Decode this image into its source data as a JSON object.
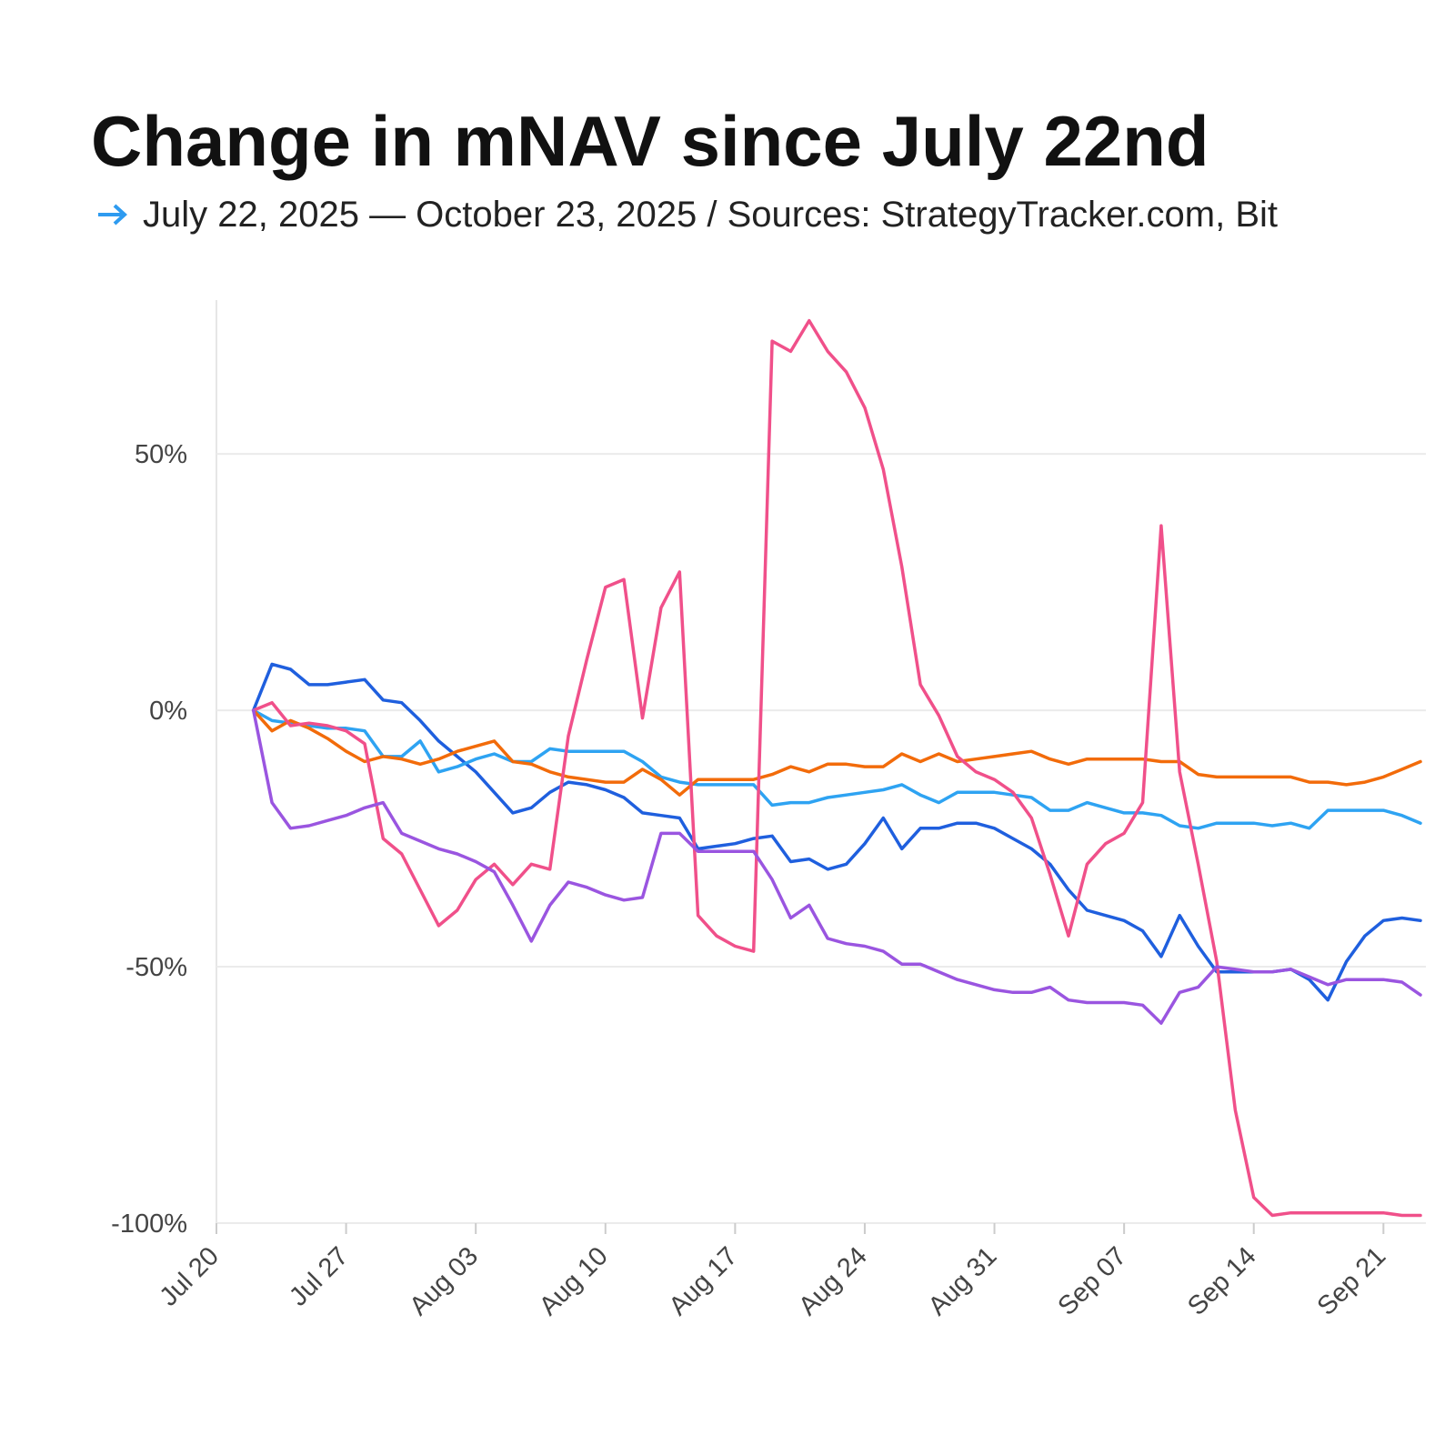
{
  "chart_data": {
    "type": "line",
    "title": "Change in mNAV since July 22nd",
    "subtitle": "July 22, 2025 — October 23, 2025 / Sources: StrategyTracker.com, Bit",
    "categories": [
      "Jul 20",
      null,
      null,
      null,
      null,
      null,
      null,
      "Jul 27",
      null,
      null,
      null,
      null,
      null,
      null,
      "Aug 03",
      null,
      null,
      null,
      null,
      null,
      null,
      "Aug 10",
      null,
      null,
      null,
      null,
      null,
      null,
      "Aug 17",
      null,
      null,
      null,
      null,
      null,
      null,
      "Aug 24",
      null,
      null,
      null,
      null,
      null,
      null,
      "Aug 31",
      null,
      null,
      null,
      null,
      null,
      null,
      "Sep 07",
      null,
      null,
      null,
      null,
      null,
      null,
      "Sep 14",
      null,
      null,
      null,
      null,
      null,
      null,
      "Sep 21",
      null,
      null
    ],
    "ylim": [
      -100,
      80
    ],
    "yticks": [
      {
        "value": -100,
        "label": "-100%"
      },
      {
        "value": -50,
        "label": "-50%"
      },
      {
        "value": 0,
        "label": "0%"
      },
      {
        "value": 50,
        "label": "50%"
      }
    ],
    "grid": true,
    "series": [
      {
        "color": "#1f5fde",
        "values": [
          null,
          null,
          0,
          9,
          8,
          5,
          5,
          5.5,
          6,
          2,
          1.5,
          -2,
          -6,
          -9,
          -12,
          -16,
          -20,
          -19,
          -16,
          -14,
          -14.5,
          -15.5,
          -17,
          -20,
          -20.5,
          -21,
          -27,
          -26.5,
          -26,
          -25,
          -24.5,
          -29.5,
          -29,
          -31,
          -30,
          -26,
          -21,
          -27,
          -23,
          -23,
          -22,
          -22,
          -23,
          -25,
          -27,
          -30,
          -35,
          -39,
          -40,
          -41,
          -43,
          -48,
          -40,
          -46,
          -51,
          -51,
          -51,
          -51,
          -50.5,
          -52.5,
          -56.5,
          -49,
          -44,
          -41,
          -40.5,
          -41
        ]
      },
      {
        "color": "#2ea3f2",
        "values": [
          null,
          null,
          0,
          -2,
          -2.5,
          -3,
          -3.5,
          -3.5,
          -4,
          -9,
          -9,
          -6,
          -12,
          -11,
          -9.5,
          -8.5,
          -10,
          -10,
          -7.5,
          -8,
          -8,
          -8,
          -8,
          -10,
          -13,
          -14,
          -14.5,
          -14.5,
          -14.5,
          -14.5,
          -18.5,
          -18,
          -18,
          -17,
          -16.5,
          -16,
          -15.5,
          -14.5,
          -16.5,
          -18,
          -16,
          -16,
          -16,
          -16.5,
          -17,
          -19.5,
          -19.5,
          -18,
          -19,
          -20,
          -20,
          -20.5,
          -22.5,
          -23,
          -22,
          -22,
          -22,
          -22.5,
          -22,
          -23,
          -19.5,
          -19.5,
          -19.5,
          -19.5,
          -20.5,
          -22
        ]
      },
      {
        "color": "#f26b0a",
        "values": [
          null,
          null,
          0,
          -4,
          -2,
          -3.5,
          -5.5,
          -8,
          -10,
          -9,
          -9.5,
          -10.5,
          -9.5,
          -8,
          -7,
          -6,
          -10,
          -10.5,
          -12,
          -13,
          -13.5,
          -14,
          -14,
          -11.5,
          -13.5,
          -16.5,
          -13.5,
          -13.5,
          -13.5,
          -13.5,
          -12.5,
          -11,
          -12,
          -10.5,
          -10.5,
          -11,
          -11,
          -8.5,
          -10,
          -8.5,
          -10,
          -9.5,
          -9,
          -8.5,
          -8,
          -9.5,
          -10.5,
          -9.5,
          -9.5,
          -9.5,
          -9.5,
          -10,
          -10,
          -12.5,
          -13,
          -13,
          -13,
          -13,
          -13,
          -14,
          -14,
          -14.5,
          -14,
          -13,
          -11.5,
          -10
        ]
      },
      {
        "color": "#f0508a",
        "values": [
          null,
          null,
          0,
          1.5,
          -3,
          -2.5,
          -3,
          -4,
          -6.5,
          -25,
          -28,
          -35,
          -42,
          -39,
          -33,
          -30,
          -34,
          -30,
          -31,
          -5,
          10,
          24,
          25.5,
          -1.5,
          20,
          27,
          -40,
          -44,
          -46,
          -47,
          72,
          70,
          76,
          70,
          66,
          59,
          47,
          28,
          5,
          -1,
          -9,
          -12,
          -13.5,
          -16,
          -21,
          -32,
          -44,
          -30,
          -26,
          -24,
          -18,
          36,
          -12,
          -30,
          -49,
          -78,
          -95,
          -98.5,
          -98,
          -98,
          -98,
          -98,
          -98,
          -98,
          -98.5,
          -98.5
        ]
      },
      {
        "color": "#9a55e0",
        "values": [
          null,
          null,
          0,
          -18,
          -23,
          -22.5,
          -21.5,
          -20.5,
          -19,
          -18,
          -24,
          -25.5,
          -27,
          -28,
          -29.5,
          -31.5,
          -38,
          -45,
          -38,
          -33.5,
          -34.5,
          -36,
          -37,
          -36.5,
          -24,
          -24,
          -27.5,
          -27.5,
          -27.5,
          -27.5,
          -33,
          -40.5,
          -38,
          -44.5,
          -45.5,
          -46,
          -47,
          -49.5,
          -49.5,
          -51,
          -52.5,
          -53.5,
          -54.5,
          -55,
          -55,
          -54,
          -56.5,
          -57,
          -57,
          -57,
          -57.5,
          -61,
          -55,
          -54,
          -50,
          -50.5,
          -51,
          -51,
          -50.5,
          -52,
          -53.5,
          -52.5,
          -52.5,
          -52.5,
          -53,
          -55.5
        ]
      }
    ]
  }
}
